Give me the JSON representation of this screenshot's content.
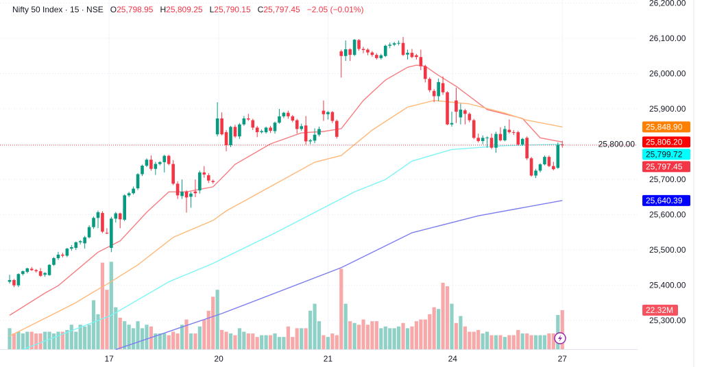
{
  "legend": {
    "symbol": "Nifty 50 Index · 15 · NSE",
    "open_prefix": "O",
    "open": "25,798.95",
    "high_prefix": "H",
    "high": "25,809.25",
    "low_prefix": "L",
    "low": "25,790.15",
    "close_prefix": "C",
    "close": "25,797.45",
    "change": "−2.05 (−0.01%)"
  },
  "colors": {
    "up": "#089981",
    "down": "#F23645",
    "vol_up": "#8fd1c6",
    "vol_down": "#f7a9a9",
    "ma_fast": "#F77C80",
    "ma_50": "#FFB877",
    "ma_100": "#7CF5F5",
    "ma_200": "#7B7BF0",
    "lightning": "#9C27B0"
  },
  "chart_data": {
    "type": "candlestick",
    "title": "Nifty 50 Index · 15 · NSE",
    "ylim": [
      25200,
      26200
    ],
    "grid": true,
    "y_ticks": [
      "26,200.00",
      "26,100.00",
      "26,000.00",
      "25,900.00",
      "25,800.00",
      "25,700.00",
      "25,600.00",
      "25,500.00",
      "25,400.00",
      "25,300.00"
    ],
    "y_tick_values": [
      26200,
      26100,
      26000,
      25900,
      25800,
      25700,
      25600,
      25500,
      25400,
      25300
    ],
    "x_ticks": [
      {
        "label": "17",
        "bar": 22.5
      },
      {
        "label": "20",
        "bar": 47.3
      },
      {
        "label": "21",
        "bar": 72
      },
      {
        "label": "24",
        "bar": 100.2
      },
      {
        "label": "27",
        "bar": 125
      }
    ],
    "ohlc": [
      [
        25410,
        25430,
        25405,
        25415
      ],
      [
        25415,
        25418,
        25395,
        25400
      ],
      [
        25400,
        25434,
        25395,
        25432
      ],
      [
        25432,
        25442,
        25428,
        25440
      ],
      [
        25438,
        25450,
        25434,
        25448
      ],
      [
        25447,
        25452,
        25441,
        25443
      ],
      [
        25443,
        25446,
        25436,
        25440
      ],
      [
        25440,
        25449,
        25424,
        25427
      ],
      [
        25430,
        25437,
        25424,
        25435
      ],
      [
        25429,
        25460,
        25427,
        25458
      ],
      [
        25458,
        25480,
        25455,
        25477
      ],
      [
        25477,
        25495,
        25472,
        25487
      ],
      [
        25487,
        25492,
        25479,
        25484
      ],
      [
        25484,
        25506,
        25480,
        25504
      ],
      [
        25504,
        25514,
        25498,
        25508
      ],
      [
        25506,
        25524,
        25500,
        25522
      ],
      [
        25522,
        25528,
        25516,
        25525
      ],
      [
        25519,
        25540,
        25504,
        25536
      ],
      [
        25536,
        25570,
        25533,
        25565
      ],
      [
        25565,
        25595,
        25560,
        25591
      ],
      [
        25591,
        25612,
        25562,
        25607
      ],
      [
        25605,
        25610,
        25548,
        25552
      ],
      [
        25549,
        25562,
        25545,
        25548
      ],
      [
        25506,
        25594,
        25494,
        25589
      ],
      [
        25589,
        25608,
        25578,
        25604
      ],
      [
        25604,
        25606,
        25562,
        25587
      ],
      [
        25586,
        25658,
        25582,
        25655
      ],
      [
        25655,
        25665,
        25650,
        25661
      ],
      [
        25661,
        25680,
        25657,
        25674
      ],
      [
        25675,
        25718,
        25670,
        25715
      ],
      [
        25715,
        25742,
        25710,
        25739
      ],
      [
        25739,
        25760,
        25735,
        25756
      ],
      [
        25756,
        25768,
        25725,
        25730
      ],
      [
        25730,
        25750,
        25713,
        25744
      ],
      [
        25744,
        25752,
        25740,
        25749
      ],
      [
        25749,
        25770,
        25720,
        25767
      ],
      [
        25767,
        25770,
        25740,
        25744
      ],
      [
        25744,
        25755,
        25684,
        25688
      ],
      [
        25688,
        25695,
        25645,
        25655
      ],
      [
        25653,
        25700,
        25645,
        25665
      ],
      [
        25666,
        25670,
        25606,
        25649
      ],
      [
        25651,
        25665,
        25620,
        25660
      ],
      [
        25666,
        25700,
        25650,
        25661
      ],
      [
        25669,
        25725,
        25660,
        25720
      ],
      [
        25720,
        25738,
        25705,
        25714
      ],
      [
        25712,
        25718,
        25690,
        25697
      ],
      [
        25696,
        25700,
        25688,
        25693
      ],
      [
        25828,
        25919,
        25822,
        25873
      ],
      [
        25873,
        25890,
        25825,
        25828
      ],
      [
        25834,
        25840,
        25780,
        25797
      ],
      [
        25797,
        25852,
        25792,
        25849
      ],
      [
        25849,
        25855,
        25818,
        25822
      ],
      [
        25822,
        25860,
        25815,
        25856
      ],
      [
        25856,
        25880,
        25852,
        25873
      ],
      [
        25873,
        25886,
        25866,
        25870
      ],
      [
        25868,
        25872,
        25840,
        25847
      ],
      [
        25847,
        25852,
        25820,
        25834
      ],
      [
        25834,
        25842,
        25830,
        25837
      ],
      [
        25834,
        25850,
        25830,
        25847
      ],
      [
        25847,
        25852,
        25832,
        25838
      ],
      [
        25837,
        25864,
        25830,
        25861
      ],
      [
        25861,
        25900,
        25858,
        25879
      ],
      [
        25879,
        25892,
        25874,
        25889
      ],
      [
        25889,
        25895,
        25872,
        25879
      ],
      [
        25879,
        25883,
        25862,
        25867
      ],
      [
        25868,
        25872,
        25830,
        25843
      ],
      [
        25843,
        25858,
        25838,
        25851
      ],
      [
        25853,
        25880,
        25799,
        25808
      ],
      [
        25808,
        25815,
        25800,
        25811
      ],
      [
        25810,
        25845,
        25803,
        25827
      ],
      [
        25827,
        25850,
        25822,
        25843
      ],
      [
        25895,
        25924,
        25866,
        25885
      ],
      [
        25885,
        25894,
        25870,
        25891
      ],
      [
        25891,
        25894,
        25860,
        25866
      ],
      [
        25866,
        25870,
        25816,
        25821
      ],
      [
        26063,
        26068,
        25989,
        26050
      ],
      [
        26050,
        26094,
        26036,
        26069
      ],
      [
        26069,
        26072,
        26036,
        26053
      ],
      [
        26053,
        26098,
        26050,
        26096
      ],
      [
        26095,
        26098,
        26065,
        26070
      ],
      [
        26070,
        26076,
        26058,
        26067
      ],
      [
        26068,
        26072,
        26052,
        26060
      ],
      [
        26060,
        26064,
        26048,
        26053
      ],
      [
        26053,
        26058,
        26040,
        26044
      ],
      [
        26044,
        26056,
        26040,
        26052
      ],
      [
        26050,
        26082,
        26047,
        26079
      ],
      [
        26079,
        26088,
        26072,
        26082
      ],
      [
        26082,
        26090,
        26078,
        26086
      ],
      [
        26086,
        26094,
        26080,
        26087
      ],
      [
        26087,
        26104,
        26050,
        26053
      ],
      [
        26054,
        26068,
        26040,
        26059
      ],
      [
        26059,
        26070,
        26044,
        26047
      ],
      [
        26052,
        26056,
        26040,
        26047
      ],
      [
        26047,
        26068,
        26010,
        26021
      ],
      [
        26021,
        26025,
        25975,
        25985
      ],
      [
        25985,
        25990,
        25947,
        25953
      ],
      [
        25951,
        25956,
        25919,
        25936
      ],
      [
        25936,
        25986,
        25922,
        25976
      ],
      [
        25973,
        25992,
        25940,
        25947
      ],
      [
        25947,
        25950,
        25854,
        25856
      ],
      [
        25856,
        25892,
        25850,
        25860
      ],
      [
        25924,
        25960,
        25860,
        25892
      ],
      [
        25876,
        25915,
        25856,
        25898
      ],
      [
        25896,
        25900,
        25856,
        25886
      ],
      [
        25886,
        25890,
        25862,
        25868
      ],
      [
        25868,
        25872,
        25814,
        25818
      ],
      [
        25818,
        25830,
        25805,
        25809
      ],
      [
        25809,
        25825,
        25800,
        25818
      ],
      [
        25818,
        25822,
        25790,
        25819
      ],
      [
        25818,
        25830,
        25786,
        25790
      ],
      [
        25790,
        25835,
        25776,
        25829
      ],
      [
        25829,
        25848,
        25808,
        25811
      ],
      [
        25811,
        25852,
        25808,
        25843
      ],
      [
        25841,
        25870,
        25830,
        25834
      ],
      [
        25834,
        25840,
        25826,
        25833
      ],
      [
        25834,
        25838,
        25796,
        25799
      ],
      [
        25799,
        25818,
        25795,
        25815
      ],
      [
        25818,
        25822,
        25755,
        25760
      ],
      [
        25760,
        25764,
        25708,
        25711
      ],
      [
        25711,
        25730,
        25704,
        25725
      ],
      [
        25725,
        25746,
        25720,
        25743
      ],
      [
        25743,
        25768,
        25740,
        25764
      ],
      [
        25764,
        25768,
        25735,
        25738
      ],
      [
        25738,
        25750,
        25726,
        25729
      ],
      [
        25733,
        25805,
        25730,
        25798
      ],
      [
        25798.95,
        25809.25,
        25790.15,
        25797.45
      ]
    ],
    "volume_millions": [
      12,
      9,
      10,
      9,
      10,
      10,
      9,
      9,
      10,
      10,
      9,
      10,
      10,
      11,
      14,
      10,
      14,
      13,
      14,
      28,
      20,
      49.5,
      34,
      50,
      24,
      18,
      16,
      14,
      12,
      16,
      12,
      14,
      13,
      9,
      9,
      9,
      8,
      10,
      9,
      14,
      17,
      9,
      9,
      13,
      17,
      22,
      30,
      34,
      11,
      10,
      9,
      8,
      12,
      10,
      9,
      9,
      7,
      8,
      8,
      8,
      9,
      7,
      7,
      13,
      7,
      12,
      12,
      12,
      22,
      26,
      16,
      8,
      7,
      9,
      8,
      46,
      26,
      16,
      15,
      14,
      17,
      14,
      16,
      16,
      12,
      13,
      12,
      12,
      13,
      15,
      12,
      13,
      16,
      17,
      17,
      20,
      24,
      23,
      38,
      36,
      26,
      15,
      19,
      13,
      10,
      10,
      11,
      9,
      10,
      8,
      8,
      8,
      7,
      8,
      8,
      11,
      9,
      9,
      8,
      8,
      8,
      8,
      9,
      9,
      19.6,
      22.32
    ],
    "moving_averages": [
      {
        "key": "ma_fast",
        "last": "25,806.20",
        "badge_color": "#FF0000",
        "badge_text_color": "#ffffff",
        "points": [
          [
            0,
            25315
          ],
          [
            8,
            25378
          ],
          [
            11,
            25399
          ],
          [
            20,
            25494
          ],
          [
            25,
            25526
          ],
          [
            31,
            25607
          ],
          [
            36,
            25665
          ],
          [
            40,
            25665
          ],
          [
            46,
            25679
          ],
          [
            49,
            25717
          ],
          [
            51,
            25743
          ],
          [
            59,
            25801
          ],
          [
            66,
            25832
          ],
          [
            71,
            25836
          ],
          [
            75,
            25844
          ],
          [
            80,
            25924
          ],
          [
            85,
            25982
          ],
          [
            90,
            26018
          ],
          [
            92,
            26024
          ],
          [
            94,
            26021
          ],
          [
            97,
            25995
          ],
          [
            101,
            25964
          ],
          [
            108,
            25898
          ],
          [
            116,
            25873
          ],
          [
            120,
            25818
          ],
          [
            125,
            25806.2
          ]
        ]
      },
      {
        "key": "ma_50",
        "last": "25,848.90",
        "badge_color": "#FF7F00",
        "badge_text_color": "#ffffff",
        "points": [
          [
            0,
            25256
          ],
          [
            15,
            25351
          ],
          [
            18,
            25374
          ],
          [
            22,
            25403
          ],
          [
            29,
            25458
          ],
          [
            37,
            25536
          ],
          [
            46,
            25584
          ],
          [
            49,
            25611
          ],
          [
            69,
            25749
          ],
          [
            75,
            25768
          ],
          [
            82,
            25840
          ],
          [
            90,
            25905
          ],
          [
            96,
            25924
          ],
          [
            104,
            25914
          ],
          [
            112,
            25888
          ],
          [
            117,
            25868
          ],
          [
            125,
            25848.9
          ]
        ]
      },
      {
        "key": "ma_100",
        "last": "25,799.72",
        "badge_color": "#00FFFF",
        "badge_text_color": "#131722",
        "points": [
          [
            3,
            25218
          ],
          [
            23,
            25315
          ],
          [
            36,
            25410
          ],
          [
            46,
            25462
          ],
          [
            49,
            25481
          ],
          [
            60,
            25548
          ],
          [
            72,
            25626
          ],
          [
            78,
            25665
          ],
          [
            85,
            25700
          ],
          [
            91,
            25752
          ],
          [
            100,
            25785
          ],
          [
            112,
            25796
          ],
          [
            125,
            25799.72
          ]
        ]
      },
      {
        "key": "ma_200",
        "last": "25,640.39",
        "badge_color": "#0000FF",
        "badge_text_color": "#ffffff",
        "points": [
          [
            24,
            25218
          ],
          [
            48,
            25320
          ],
          [
            75,
            25450
          ],
          [
            91,
            25549
          ],
          [
            106,
            25597
          ],
          [
            125,
            25640.39
          ]
        ]
      }
    ],
    "last_price": {
      "value": 25797.45,
      "label": "25,797.45",
      "color": "#F23645"
    },
    "last_volume": {
      "label": "22.32M",
      "color": "#F7525F"
    }
  }
}
